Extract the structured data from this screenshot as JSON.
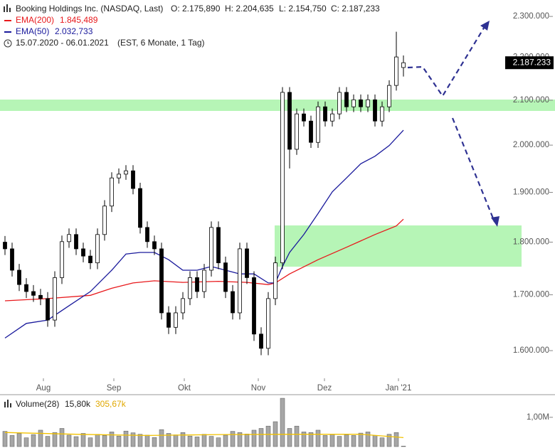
{
  "chart_data": [
    {
      "type": "candlestick",
      "title": "Booking Holdings Inc. (NASDAQ, Last)",
      "header_stats": [
        "O: 2.175,890",
        "H: 2.204,635",
        "L: 2.154,750",
        "C: 2.187,233"
      ],
      "range_text": "15.07.2020 - 06.01.2021",
      "range_note": "(EST, 6 Monate, 1 Tag)",
      "log_scale": true,
      "grid": false,
      "ylim": [
        1555000,
        2327000
      ],
      "yticks": [
        {
          "value": 1600000,
          "label": "1.600.000"
        },
        {
          "value": 1700000,
          "label": "1.700.000"
        },
        {
          "value": 1800000,
          "label": "1.800.000"
        },
        {
          "value": 1900000,
          "label": "1.900.000"
        },
        {
          "value": 2000000,
          "label": "2.000.000"
        },
        {
          "value": 2100000,
          "label": "2.100.000"
        },
        {
          "value": 2200000,
          "label": "2.200.000"
        },
        {
          "value": 2300000,
          "label": "2.300.000"
        }
      ],
      "xlim": [
        -0.7,
        69.8
      ],
      "xticks": [
        {
          "value": 5.4,
          "label": "Aug"
        },
        {
          "value": 15.3,
          "label": "Sep"
        },
        {
          "value": 25.2,
          "label": "Okt"
        },
        {
          "value": 35.6,
          "label": "Nov"
        },
        {
          "value": 44.9,
          "label": "Dez"
        },
        {
          "value": 55.3,
          "label": "Jan '21"
        }
      ],
      "candle_color": "#000000",
      "open": [
        1800000,
        1787000,
        1746000,
        1719000,
        1706000,
        1699000,
        1693000,
        1654000,
        1732000,
        1801000,
        1815000,
        1787000,
        1773000,
        1760000,
        1815000,
        1872000,
        1930000,
        1938000,
        1945000,
        1908000,
        1829000,
        1801000,
        1787000,
        1667000,
        1641000,
        1667000,
        1693000,
        1732000,
        1706000,
        1746000,
        1829000,
        1760000,
        1706000,
        1667000,
        1787000,
        1732000,
        1629000,
        1604000,
        1693000,
        1760000,
        2118000,
        1991000,
        2069000,
        2053000,
        2006000,
        2085000,
        2053000,
        2069000,
        2118000,
        2085000,
        2101000,
        2085000,
        2101000,
        2053000,
        2085000,
        2134000,
        2175890
      ],
      "high": [
        1812000,
        1799000,
        1758000,
        1731000,
        1718000,
        1711000,
        1705000,
        1744000,
        1813000,
        1827000,
        1827000,
        1799000,
        1785000,
        1827000,
        1884000,
        1942000,
        1950000,
        1957000,
        1957000,
        1920000,
        1841000,
        1813000,
        1799000,
        1679000,
        1679000,
        1705000,
        1744000,
        1744000,
        1758000,
        1841000,
        1841000,
        1772000,
        1718000,
        1799000,
        1799000,
        1744000,
        1641000,
        1705000,
        1772000,
        2130000,
        2130000,
        2081000,
        2081000,
        2065000,
        2097000,
        2097000,
        2081000,
        2130000,
        2130000,
        2113000,
        2113000,
        2113000,
        2113000,
        2097000,
        2146000,
        2262000,
        2204635
      ],
      "low": [
        1775000,
        1734000,
        1707000,
        1694000,
        1687000,
        1681000,
        1642000,
        1642000,
        1720000,
        1789000,
        1775000,
        1761000,
        1748000,
        1748000,
        1803000,
        1860000,
        1918000,
        1926000,
        1896000,
        1817000,
        1789000,
        1775000,
        1655000,
        1629000,
        1629000,
        1655000,
        1681000,
        1694000,
        1694000,
        1734000,
        1748000,
        1694000,
        1655000,
        1655000,
        1720000,
        1617000,
        1592000,
        1592000,
        1681000,
        1748000,
        1950000,
        1979000,
        2041000,
        1994000,
        1994000,
        2041000,
        2041000,
        2057000,
        2073000,
        2073000,
        2073000,
        2073000,
        2041000,
        2041000,
        2073000,
        2122000,
        2154750
      ],
      "close": [
        1787000,
        1746000,
        1719000,
        1706000,
        1699000,
        1693000,
        1654000,
        1732000,
        1801000,
        1815000,
        1787000,
        1773000,
        1760000,
        1815000,
        1872000,
        1930000,
        1938000,
        1945000,
        1908000,
        1829000,
        1801000,
        1787000,
        1667000,
        1641000,
        1667000,
        1693000,
        1732000,
        1706000,
        1746000,
        1829000,
        1760000,
        1706000,
        1667000,
        1787000,
        1732000,
        1629000,
        1604000,
        1693000,
        1760000,
        2118000,
        1991000,
        2069000,
        2053000,
        2006000,
        2085000,
        2053000,
        2069000,
        2118000,
        2085000,
        2101000,
        2085000,
        2101000,
        2053000,
        2085000,
        2134000,
        2201000,
        2187233
      ],
      "last_label": {
        "value": 2187233,
        "label": "2.187.233"
      },
      "series": [
        {
          "name": "EMA(200)",
          "color": "#e8191c",
          "last_text": "1.845,489",
          "x": [
            0,
            6,
            12,
            15,
            18,
            21,
            25,
            30,
            34,
            37,
            38,
            40,
            44,
            48,
            52,
            55,
            56
          ],
          "values": [
            1689000,
            1693000,
            1699000,
            1712000,
            1722000,
            1726000,
            1723000,
            1725000,
            1723000,
            1719000,
            1722000,
            1739000,
            1766000,
            1790000,
            1815000,
            1832000,
            1845489
          ]
        },
        {
          "name": "EMA(50)",
          "color": "#1a1a9c",
          "last_text": "2.032,733",
          "x": [
            0,
            3,
            6,
            9,
            12,
            15,
            17,
            19,
            21,
            23,
            25,
            27,
            29,
            31,
            33,
            35,
            37,
            38,
            39,
            40,
            42,
            44,
            46,
            48,
            50,
            52,
            54,
            56
          ],
          "values": [
            1622000,
            1648000,
            1654000,
            1680000,
            1706000,
            1746000,
            1777000,
            1780000,
            1780000,
            1766000,
            1746000,
            1746000,
            1753000,
            1746000,
            1739000,
            1739000,
            1722000,
            1722000,
            1753000,
            1780000,
            1815000,
            1857000,
            1901000,
            1930000,
            1960000,
            1976000,
            1999000,
            2032733
          ]
        }
      ]
    },
    {
      "type": "bar",
      "title": "Volume(28)",
      "current_text": "15,80k",
      "ma_text": "305,67k",
      "color": "#a6a6a6",
      "ylim": [
        0,
        1700000
      ],
      "xlim": [
        -0.7,
        69.8
      ],
      "yticks": [
        {
          "value": 1000000,
          "label": "1,00M"
        }
      ],
      "values": [
        520000,
        380000,
        450000,
        300000,
        410000,
        560000,
        350000,
        480000,
        620000,
        390000,
        340000,
        450000,
        300000,
        420000,
        380000,
        500000,
        360000,
        530000,
        470000,
        420000,
        390000,
        310000,
        580000,
        450000,
        400000,
        480000,
        360000,
        330000,
        420000,
        350000,
        300000,
        390000,
        520000,
        480000,
        430000,
        560000,
        620000,
        700000,
        850000,
        1650000,
        620000,
        700000,
        500000,
        480000,
        560000,
        380000,
        420000,
        350000,
        400000,
        380000,
        460000,
        500000,
        380000,
        300000,
        420000,
        480000,
        15800
      ],
      "series": [
        {
          "color": "#f2c200",
          "x": [
            0,
            10,
            20,
            30,
            40,
            50,
            56
          ],
          "values": [
            480000,
            420000,
            380000,
            410000,
            420000,
            420000,
            305670
          ]
        }
      ]
    }
  ]
}
